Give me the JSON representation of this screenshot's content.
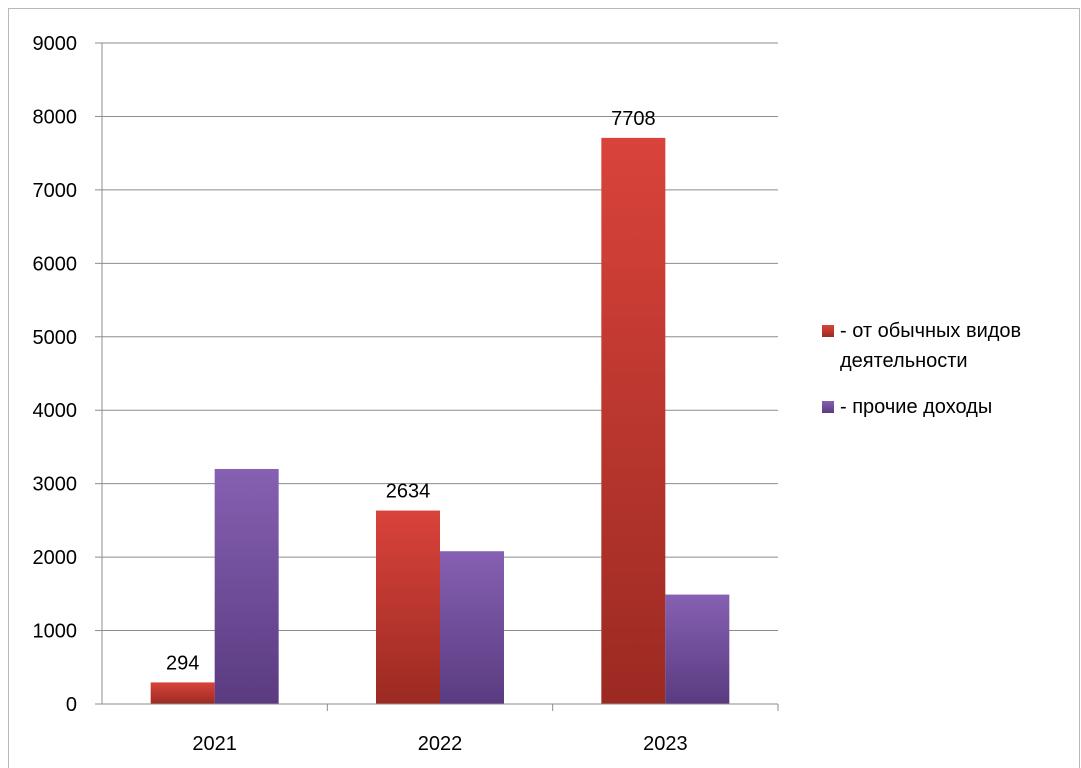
{
  "chart_data": {
    "type": "bar",
    "categories": [
      "2021",
      "2022",
      "2023"
    ],
    "series": [
      {
        "name": "- от обычных видов деятельности",
        "values": [
          294,
          2634,
          7708
        ],
        "color": "#c0392b",
        "data_labels": [
          "294",
          "2634",
          "7708"
        ]
      },
      {
        "name": "- прочие доходы",
        "values": [
          3200,
          2080,
          1490
        ],
        "color": "#7b4f9e"
      }
    ],
    "ylim": [
      0,
      9000
    ],
    "yticks": [
      0,
      1000,
      2000,
      3000,
      4000,
      5000,
      6000,
      7000,
      8000,
      9000
    ],
    "grid": true,
    "legend_position": "right"
  }
}
